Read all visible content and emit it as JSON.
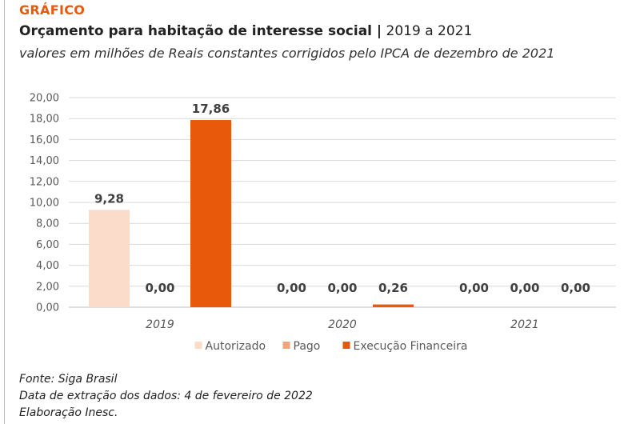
{
  "header": {
    "kicker": "GRÁFICO",
    "title_bold": "Orçamento para habitação de interesse social |",
    "title_normal": " 2019 a 2021",
    "subtitle": "valores em milhões de Reais constantes corrigidos pelo IPCA de dezembro de 2021"
  },
  "chart_data": {
    "type": "bar",
    "categories": [
      "2019",
      "2020",
      "2021"
    ],
    "series": [
      {
        "name": "Autorizado",
        "values": [
          9.28,
          0.0,
          0.0
        ],
        "labels": [
          "9,28",
          "0,00",
          "0,00"
        ],
        "color": "#fbdccb"
      },
      {
        "name": "Pago",
        "values": [
          0.0,
          0.0,
          0.0
        ],
        "labels": [
          "0,00",
          "0,00",
          "0,00"
        ],
        "color": "#f4a37c"
      },
      {
        "name": "Execução Financeira",
        "values": [
          17.86,
          0.26,
          0.0
        ],
        "labels": [
          "17,86",
          "0,26",
          "0,00"
        ],
        "color": "#e8590c"
      }
    ],
    "ylim": [
      0,
      20
    ],
    "yticks": [
      "0,00",
      "2,00",
      "4,00",
      "6,00",
      "8,00",
      "10,00",
      "12,00",
      "14,00",
      "16,00",
      "18,00",
      "20,00"
    ],
    "grid": true,
    "legend_position": "bottom"
  },
  "footer": {
    "source": "Fonte: Siga Brasil",
    "extraction_date": "Data de extração dos dados: 4 de fevereiro de 2022",
    "credit": "Elaboração Inesc."
  }
}
